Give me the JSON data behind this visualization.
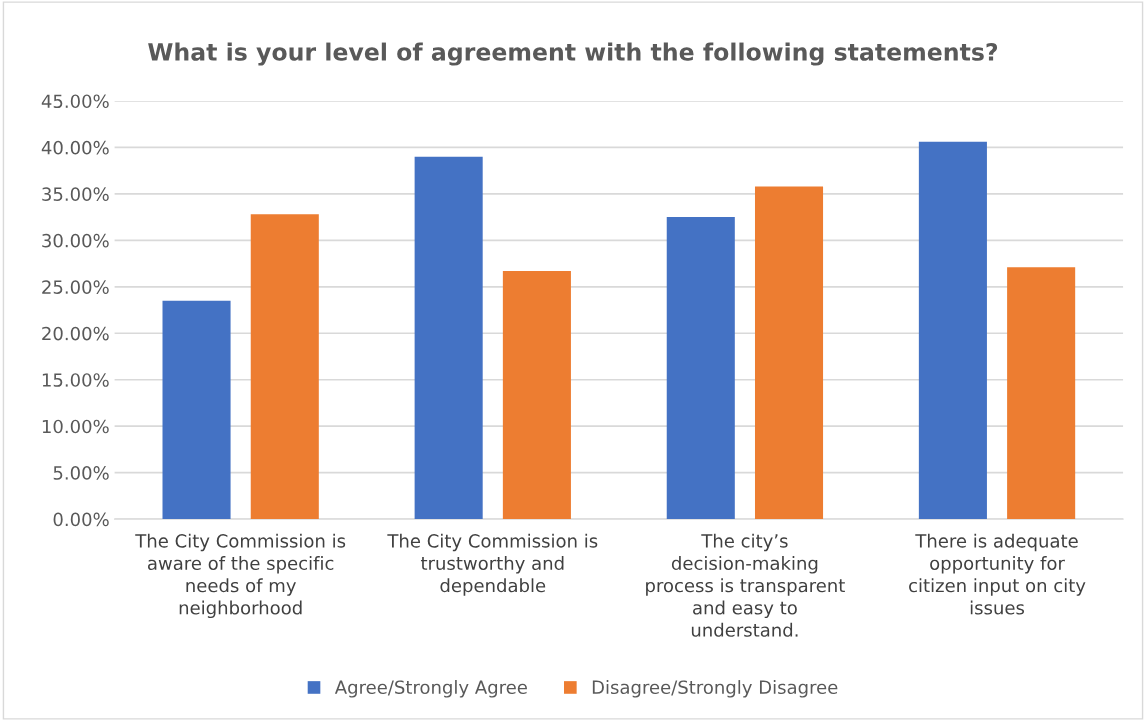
{
  "chart_data": {
    "type": "bar",
    "title": "What is your level of agreement with the following statements?",
    "categories": [
      "The City Commission is aware of the specific needs of my neighborhood",
      "The City Commission is trustworthy and dependable",
      "The city’s decision-making process is transparent and easy to understand.",
      "There is adequate opportunity for citizen input on city issues"
    ],
    "series": [
      {
        "name": "Agree/Strongly Agree",
        "color": "#4472c4",
        "values": [
          23.5,
          39.0,
          32.5,
          40.6
        ]
      },
      {
        "name": "Disagree/Strongly Disagree",
        "color": "#ed7d31",
        "values": [
          32.8,
          26.7,
          35.8,
          27.1
        ]
      }
    ],
    "ylim": [
      0,
      45
    ],
    "yticks": [
      {
        "value": 0,
        "label": "0.00%"
      },
      {
        "value": 5,
        "label": "5.00%"
      },
      {
        "value": 10,
        "label": "10.00%"
      },
      {
        "value": 15,
        "label": "15.00%"
      },
      {
        "value": 20,
        "label": "20.00%"
      },
      {
        "value": 25,
        "label": "25.00%"
      },
      {
        "value": 30,
        "label": "30.00%"
      },
      {
        "value": 35,
        "label": "35.00%"
      },
      {
        "value": 40,
        "label": "40.00%"
      },
      {
        "value": 45,
        "label": "45.00%"
      }
    ],
    "grid": "y",
    "legend": "bottom"
  }
}
